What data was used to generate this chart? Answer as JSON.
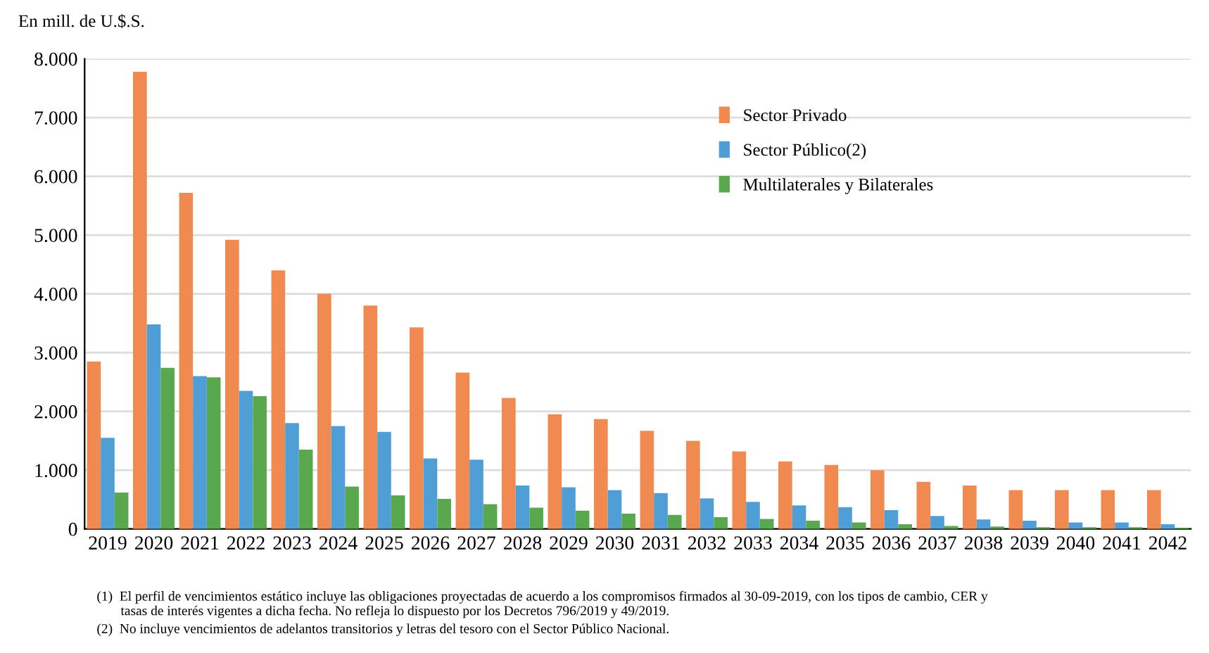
{
  "chart_data": {
    "type": "bar",
    "ylabel": "En mill. de U.$.S.",
    "categories": [
      "2019",
      "2020",
      "2021",
      "2022",
      "2023",
      "2024",
      "2025",
      "2026",
      "2027",
      "2028",
      "2029",
      "2030",
      "2031",
      "2032",
      "2033",
      "2034",
      "2035",
      "2036",
      "2037",
      "2038",
      "2039",
      "2040",
      "2041",
      "2042"
    ],
    "series": [
      {
        "name": "Sector Privado",
        "color": "#f08a50",
        "values": [
          2850,
          7780,
          5720,
          4920,
          4400,
          4000,
          3800,
          3430,
          2660,
          2230,
          1950,
          1870,
          1670,
          1500,
          1320,
          1150,
          1090,
          1000,
          800,
          740,
          660,
          660,
          660,
          660
        ]
      },
      {
        "name": "Sector Público(2)",
        "color": "#4f9fd6",
        "values": [
          1550,
          3480,
          2600,
          2350,
          1800,
          1750,
          1650,
          1200,
          1180,
          740,
          710,
          660,
          610,
          520,
          460,
          400,
          370,
          320,
          220,
          160,
          140,
          110,
          110,
          80
        ]
      },
      {
        "name": "Multilaterales y Bilaterales",
        "color": "#5aa84e",
        "values": [
          620,
          2740,
          2580,
          2260,
          1350,
          720,
          570,
          510,
          420,
          360,
          310,
          260,
          240,
          200,
          170,
          140,
          110,
          80,
          50,
          40,
          30,
          30,
          30,
          20
        ]
      }
    ],
    "ylim": [
      0,
      8000
    ],
    "yticks": [
      0,
      {
        "value": 1000,
        "label": "1.000"
      },
      {
        "value": 2000,
        "label": "2.000"
      },
      {
        "value": 3000,
        "label": "3.000"
      },
      {
        "value": 4000,
        "label": "4.000"
      },
      {
        "value": 5000,
        "label": "5.000"
      },
      {
        "value": 6000,
        "label": "6.000"
      },
      {
        "value": 7000,
        "label": "7.000"
      },
      {
        "value": 8000,
        "label": "8.000"
      }
    ],
    "grid": "y",
    "legend": "top right",
    "annotations": [
      "(1)  El perfil de vencimientos estático incluye las obligaciones proyectadas de acuerdo a los compromisos firmados al 30-09-2019, con los tipos de cambio, CER y\n       tasas de interés vigentes a dicha fecha. No refleja lo dispuesto por los Decretos 796/2019 y 49/2019.",
      "(2)  No incluye vencimientos de adelantos transitorios y letras del tesoro con el Sector Público Nacional."
    ]
  }
}
